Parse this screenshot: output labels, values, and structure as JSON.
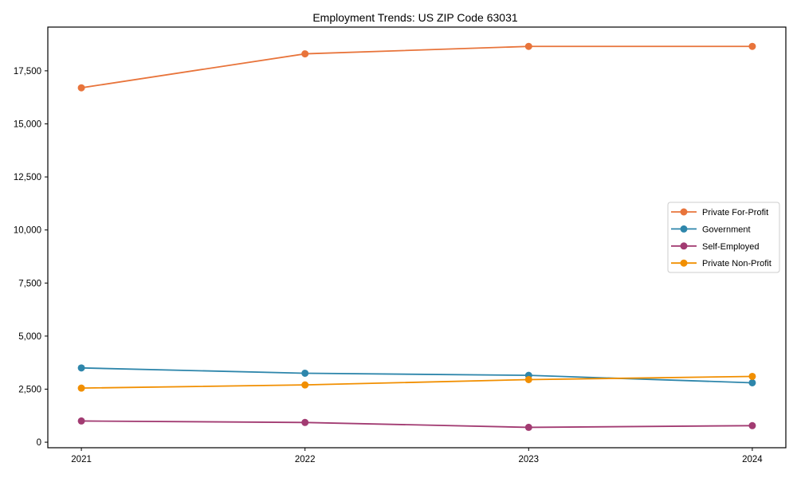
{
  "chart_data": {
    "type": "line",
    "title": "Employment Trends: US ZIP Code 63031",
    "xlabel": "",
    "ylabel": "",
    "x": [
      2021,
      2022,
      2023,
      2024
    ],
    "categories": [
      "2021",
      "2022",
      "2023",
      "2024"
    ],
    "series": [
      {
        "name": "Private For-Profit",
        "color": "#e8743b",
        "values": [
          16700,
          18300,
          18650,
          18650
        ]
      },
      {
        "name": "Government",
        "color": "#2e86ab",
        "values": [
          3500,
          3250,
          3150,
          2800
        ]
      },
      {
        "name": "Self-Employed",
        "color": "#a23b72",
        "values": [
          1000,
          930,
          700,
          780
        ]
      },
      {
        "name": "Private Non-Profit",
        "color": "#f18f01",
        "values": [
          2550,
          2700,
          2950,
          3100
        ]
      }
    ],
    "xlim": [
      2020.85,
      2024.15
    ],
    "ylim": [
      -260,
      19560
    ],
    "yticks": [
      0,
      2500,
      5000,
      7500,
      10000,
      12500,
      15000,
      17500
    ],
    "ytick_labels": [
      "0",
      "2,500",
      "5,000",
      "7,500",
      "10,000",
      "12,500",
      "15,000",
      "17,500"
    ],
    "grid": false,
    "background_color": "#ffffff",
    "axis_color": "#000000",
    "legend": {
      "position": "center right",
      "border_color": "#cccccc",
      "background": "#ffffff"
    }
  }
}
